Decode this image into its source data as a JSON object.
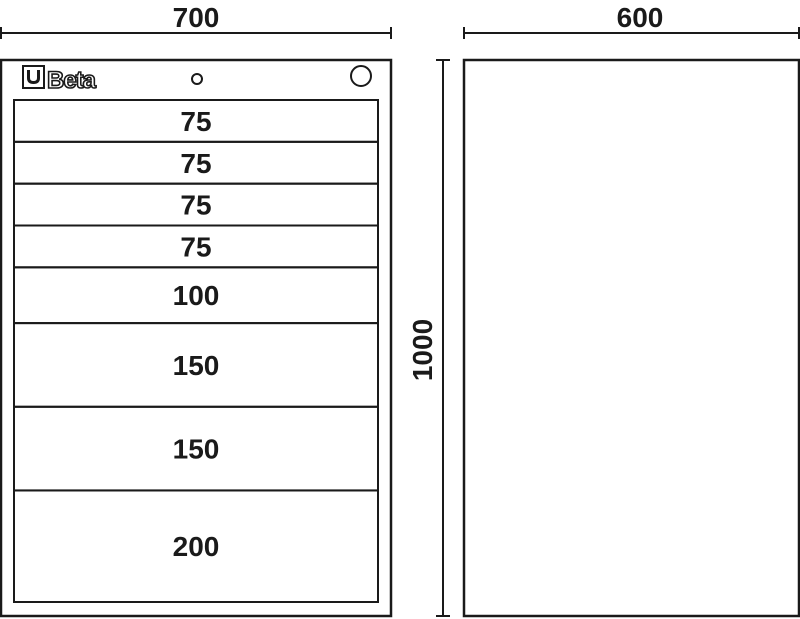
{
  "dimensions": {
    "width_front": "700",
    "width_side": "600",
    "height": "1000"
  },
  "logo": {
    "text": "Beta"
  },
  "drawers": [
    "75",
    "75",
    "75",
    "75",
    "100",
    "150",
    "150",
    "200"
  ],
  "colors": {
    "line": "#1a1a1a",
    "background": "#ffffff"
  }
}
